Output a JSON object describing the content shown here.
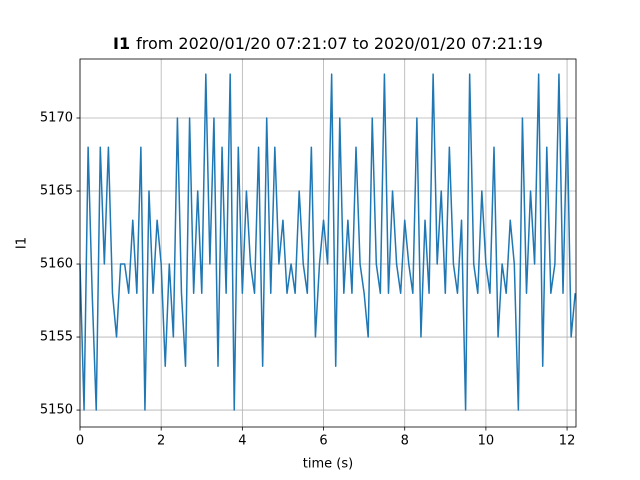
{
  "chart_data": {
    "type": "line",
    "title_bold": "I1",
    "title": "from 2020/01/20 07:21:07 to 2020/01/20 07:21:19",
    "xlabel": "time (s)",
    "ylabel": "I1",
    "x": [
      0,
      0.1,
      0.2,
      0.3,
      0.4,
      0.5,
      0.6,
      0.7,
      0.8,
      0.9,
      1,
      1.1,
      1.2,
      1.3,
      1.4,
      1.5,
      1.6,
      1.7,
      1.8,
      1.9,
      2,
      2.1,
      2.2,
      2.3,
      2.4,
      2.5,
      2.6,
      2.7,
      2.8,
      2.9,
      3,
      3.1,
      3.2,
      3.3,
      3.4,
      3.5,
      3.6,
      3.7,
      3.8,
      3.9,
      4,
      4.1,
      4.2,
      4.3,
      4.4,
      4.5,
      4.6,
      4.7,
      4.8,
      4.9,
      5,
      5.1,
      5.2,
      5.3,
      5.4,
      5.5,
      5.6,
      5.7,
      5.8,
      5.9,
      6,
      6.1,
      6.2,
      6.3,
      6.4,
      6.5,
      6.6,
      6.7,
      6.8,
      6.9,
      7,
      7.1,
      7.2,
      7.3,
      7.4,
      7.5,
      7.6,
      7.7,
      7.8,
      7.9,
      8,
      8.1,
      8.2,
      8.3,
      8.4,
      8.5,
      8.6,
      8.7,
      8.8,
      8.9,
      9,
      9.1,
      9.2,
      9.3,
      9.4,
      9.5,
      9.6,
      9.7,
      9.8,
      9.9,
      10,
      10.1,
      10.2,
      10.3,
      10.4,
      10.5,
      10.6,
      10.7,
      10.8,
      10.9,
      11,
      11.1,
      11.2,
      11.3,
      11.4,
      11.5,
      11.6,
      11.7,
      11.8,
      11.9,
      12,
      12.1,
      12.2
    ],
    "series": [
      {
        "name": "I1",
        "color": "#1f77b4",
        "values": [
          5160,
          5150,
          5168,
          5158,
          5150,
          5168,
          5160,
          5168,
          5158,
          5155,
          5160,
          5160,
          5158,
          5163,
          5158,
          5168,
          5150,
          5165,
          5158,
          5163,
          5160,
          5153,
          5160,
          5155,
          5170,
          5158,
          5153,
          5170,
          5158,
          5165,
          5158,
          5173,
          5160,
          5170,
          5153,
          5168,
          5158,
          5173,
          5150,
          5168,
          5158,
          5165,
          5160,
          5158,
          5168,
          5153,
          5170,
          5158,
          5168,
          5160,
          5163,
          5158,
          5160,
          5158,
          5165,
          5160,
          5158,
          5168,
          5155,
          5160,
          5163,
          5160,
          5173,
          5153,
          5170,
          5158,
          5163,
          5158,
          5168,
          5160,
          5158,
          5155,
          5170,
          5160,
          5158,
          5173,
          5158,
          5165,
          5160,
          5158,
          5163,
          5160,
          5158,
          5170,
          5155,
          5163,
          5158,
          5173,
          5160,
          5165,
          5158,
          5168,
          5160,
          5158,
          5163,
          5150,
          5173,
          5160,
          5158,
          5165,
          5160,
          5158,
          5168,
          5155,
          5160,
          5158,
          5163,
          5160,
          5150,
          5170,
          5158,
          5165,
          5160,
          5173,
          5153,
          5168,
          5158,
          5160,
          5173,
          5158,
          5170,
          5155,
          5158
        ]
      }
    ],
    "xlim": [
      0,
      12.22
    ],
    "ylim": [
      5148.84,
      5174.04
    ],
    "xticks": [
      0,
      2,
      4,
      6,
      8,
      10,
      12
    ],
    "yticks": [
      5150,
      5155,
      5160,
      5165,
      5170
    ],
    "grid": true
  }
}
